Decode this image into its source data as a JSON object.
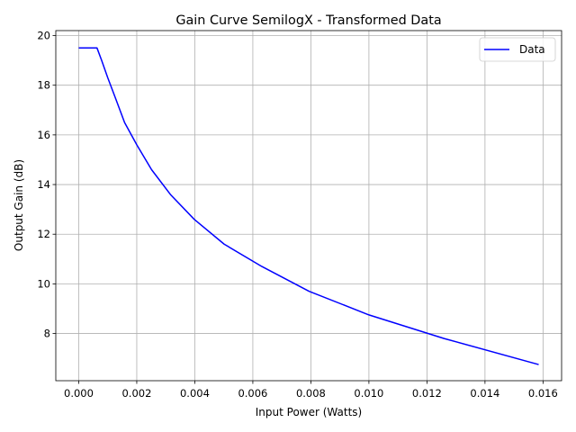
{
  "chart_data": {
    "type": "line",
    "title": "Gain Curve SemilogX - Transformed Data",
    "xlabel": "Input Power (Watts)",
    "ylabel": "Output Gain (dB)",
    "xlim": [
      -0.00079,
      0.01664
    ],
    "ylim": [
      6.1,
      20.2
    ],
    "x_ticks": [
      0.0,
      0.002,
      0.004,
      0.006,
      0.008,
      0.01,
      0.012,
      0.014,
      0.016
    ],
    "x_tick_labels": [
      "0.000",
      "0.002",
      "0.004",
      "0.006",
      "0.008",
      "0.010",
      "0.012",
      "0.014",
      "0.016"
    ],
    "y_ticks": [
      8,
      10,
      12,
      14,
      16,
      18,
      20
    ],
    "y_tick_labels": [
      "8",
      "10",
      "12",
      "14",
      "16",
      "18",
      "20"
    ],
    "grid": true,
    "legend": "top-right",
    "series": [
      {
        "name": "Data",
        "color": "#0000ff",
        "x": [
          0.0,
          0.00063,
          0.00079,
          0.001,
          0.00126,
          0.00158,
          0.002,
          0.00251,
          0.00316,
          0.00398,
          0.00501,
          0.00631,
          0.00794,
          0.01,
          0.01259,
          0.01585
        ],
        "y": [
          19.5,
          19.5,
          19.0,
          18.3,
          17.5,
          16.5,
          15.6,
          14.6,
          13.6,
          12.6,
          11.6,
          10.7,
          9.7,
          8.75,
          7.8,
          6.75
        ]
      }
    ]
  }
}
